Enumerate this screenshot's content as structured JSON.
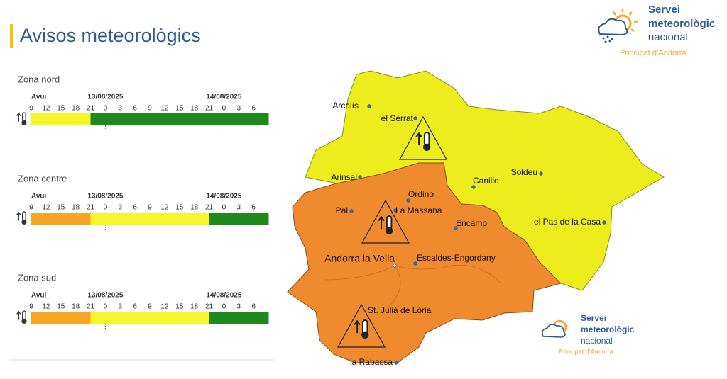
{
  "header": {
    "title": "Avisos meteorològics"
  },
  "logo": {
    "lines": [
      "Servei",
      "meteorològic",
      "nacional"
    ],
    "subtitle": "Principat d’Andorra"
  },
  "zones": [
    {
      "name": "Zona nord",
      "days": [
        "Avui",
        "13/08/2025",
        "14/08/2025"
      ],
      "hours": [
        9,
        12,
        15,
        18,
        21,
        0,
        3,
        6,
        9,
        12,
        15,
        18,
        21,
        0,
        3,
        6
      ],
      "slots": [
        "#f5f52a",
        "#f5f52a",
        "#f5f52a",
        "#f5f52a",
        "#1e8a1e",
        "#1e8a1e",
        "#1e8a1e",
        "#1e8a1e",
        "#1e8a1e",
        "#1e8a1e",
        "#1e8a1e",
        "#1e8a1e",
        "#1e8a1e",
        "#1e8a1e",
        "#1e8a1e",
        "#1e8a1e"
      ]
    },
    {
      "name": "Zona centre",
      "days": [
        "Avui",
        "13/08/2025",
        "14/08/2025"
      ],
      "hours": [
        9,
        12,
        15,
        18,
        21,
        0,
        3,
        6,
        9,
        12,
        15,
        18,
        21,
        0,
        3,
        6
      ],
      "slots": [
        "#f7a623",
        "#f7a623",
        "#f7a623",
        "#f7a623",
        "#f5f52a",
        "#f5f52a",
        "#f5f52a",
        "#f5f52a",
        "#f5f52a",
        "#f5f52a",
        "#f5f52a",
        "#f5f52a",
        "#1e8a1e",
        "#1e8a1e",
        "#1e8a1e",
        "#1e8a1e"
      ]
    },
    {
      "name": "Zona sud",
      "days": [
        "Avui",
        "13/08/2025",
        "14/08/2025"
      ],
      "hours": [
        9,
        12,
        15,
        18,
        21,
        0,
        3,
        6,
        9,
        12,
        15,
        18,
        21,
        0,
        3,
        6
      ],
      "slots": [
        "#f7a623",
        "#f7a623",
        "#f7a623",
        "#f7a623",
        "#f5f52a",
        "#f5f52a",
        "#f5f52a",
        "#f5f52a",
        "#f5f52a",
        "#f5f52a",
        "#f5f52a",
        "#f5f52a",
        "#1e8a1e",
        "#1e8a1e",
        "#1e8a1e",
        "#1e8a1e"
      ]
    }
  ],
  "map": {
    "towns": [
      "Arcalís",
      "el Serrat",
      "Arinsal",
      "Canillo",
      "Soldeu",
      "el Pas de la Casa",
      "Ordino",
      "La Massana",
      "Pal",
      "Encamp",
      "Andorra la Vella",
      "Escaldes-Engordany",
      "St. Julià de Lòria",
      "la Rabassa"
    ],
    "logo": {
      "lines": [
        "Servei",
        "meteorològic",
        "nacional"
      ],
      "subtitle": "Principat d’Andorra"
    }
  }
}
